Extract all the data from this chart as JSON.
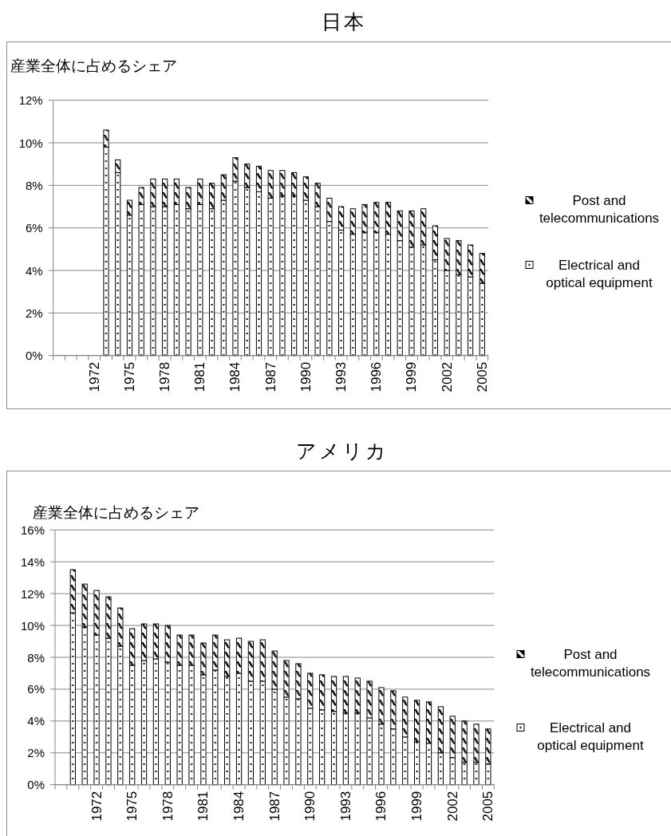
{
  "chart_data": [
    {
      "type": "bar",
      "stacked": true,
      "title": "日本",
      "ylabel": "産業全体に占めるシェア",
      "categories": [
        null,
        null,
        null,
        "1972",
        null,
        null,
        "1975",
        null,
        null,
        "1978",
        null,
        null,
        "1981",
        null,
        null,
        "1984",
        null,
        null,
        "1987",
        null,
        null,
        "1990",
        null,
        null,
        "1993",
        null,
        null,
        "1996",
        null,
        null,
        "1999",
        null,
        null,
        "2002",
        null,
        null,
        "2005"
      ],
      "series": [
        {
          "name": "Electrical and optical equipment",
          "color": "#000000",
          "values": [
            null,
            null,
            null,
            null,
            9.8,
            8.6,
            6.6,
            7.1,
            7.0,
            7.0,
            7.1,
            6.9,
            7.1,
            6.9,
            7.3,
            8.2,
            7.9,
            7.7,
            7.4,
            7.5,
            7.5,
            7.3,
            7.0,
            6.3,
            5.9,
            5.7,
            5.8,
            5.8,
            5.7,
            5.4,
            5.1,
            5.2,
            4.5,
            4.0,
            3.8,
            3.7,
            3.4
          ]
        },
        {
          "name": "Post and telecommunications",
          "color": "#000000",
          "values": [
            null,
            null,
            null,
            null,
            0.8,
            0.6,
            0.7,
            0.8,
            1.3,
            1.3,
            1.2,
            1.0,
            1.2,
            1.2,
            1.2,
            1.1,
            1.1,
            1.2,
            1.3,
            1.2,
            1.1,
            1.1,
            1.1,
            1.1,
            1.1,
            1.2,
            1.3,
            1.4,
            1.5,
            1.4,
            1.7,
            1.7,
            1.6,
            1.5,
            1.6,
            1.5,
            1.4
          ]
        }
      ],
      "ylim": [
        0,
        12
      ],
      "yticks": [
        {
          "value": 0,
          "label": "0%"
        },
        {
          "value": 2,
          "label": "2%"
        },
        {
          "value": 4,
          "label": "4%"
        },
        {
          "value": 6,
          "label": "6%"
        },
        {
          "value": 8,
          "label": "8%"
        },
        {
          "value": 10,
          "label": "10%"
        },
        {
          "value": 12,
          "label": "12%"
        }
      ],
      "grid": "y",
      "legend": "right"
    },
    {
      "type": "bar",
      "stacked": true,
      "title": "アメリカ",
      "ylabel": "産業全体に占めるシェア",
      "categories": [
        null,
        null,
        null,
        "1972",
        null,
        null,
        "1975",
        null,
        null,
        "1978",
        null,
        null,
        "1981",
        null,
        null,
        "1984",
        null,
        null,
        "1987",
        null,
        null,
        "1990",
        null,
        null,
        "1993",
        null,
        null,
        "1996",
        null,
        null,
        "1999",
        null,
        null,
        "2002",
        null,
        null,
        "2005"
      ],
      "series": [
        {
          "name": "Electrical and optical equipment",
          "color": "#000000",
          "values": [
            null,
            10.8,
            9.9,
            9.4,
            9.2,
            8.7,
            7.5,
            7.8,
            7.9,
            7.7,
            7.5,
            7.5,
            6.9,
            7.2,
            6.8,
            7.0,
            6.5,
            6.5,
            6.0,
            5.5,
            5.4,
            4.8,
            4.7,
            4.6,
            4.5,
            4.5,
            4.2,
            3.8,
            3.5,
            3.0,
            2.7,
            2.6,
            2.0,
            1.7,
            1.4,
            1.4,
            1.3
          ]
        },
        {
          "name": "Post and telecommunications",
          "color": "#000000",
          "values": [
            null,
            2.7,
            2.7,
            2.8,
            2.6,
            2.4,
            2.3,
            2.3,
            2.2,
            2.3,
            1.9,
            1.9,
            2.0,
            2.2,
            2.3,
            2.2,
            2.5,
            2.6,
            2.4,
            2.3,
            2.2,
            2.2,
            2.2,
            2.2,
            2.3,
            2.2,
            2.3,
            2.3,
            2.4,
            2.5,
            2.6,
            2.6,
            2.9,
            2.6,
            2.6,
            2.4,
            2.2
          ]
        }
      ],
      "ylim": [
        0,
        16
      ],
      "yticks": [
        {
          "value": 0,
          "label": "0%"
        },
        {
          "value": 2,
          "label": "2%"
        },
        {
          "value": 4,
          "label": "4%"
        },
        {
          "value": 6,
          "label": "6%"
        },
        {
          "value": 8,
          "label": "8%"
        },
        {
          "value": 10,
          "label": "10%"
        },
        {
          "value": 12,
          "label": "12%"
        },
        {
          "value": 14,
          "label": "14%"
        },
        {
          "value": 16,
          "label": "16%"
        }
      ],
      "grid": "y",
      "legend": "right"
    }
  ]
}
